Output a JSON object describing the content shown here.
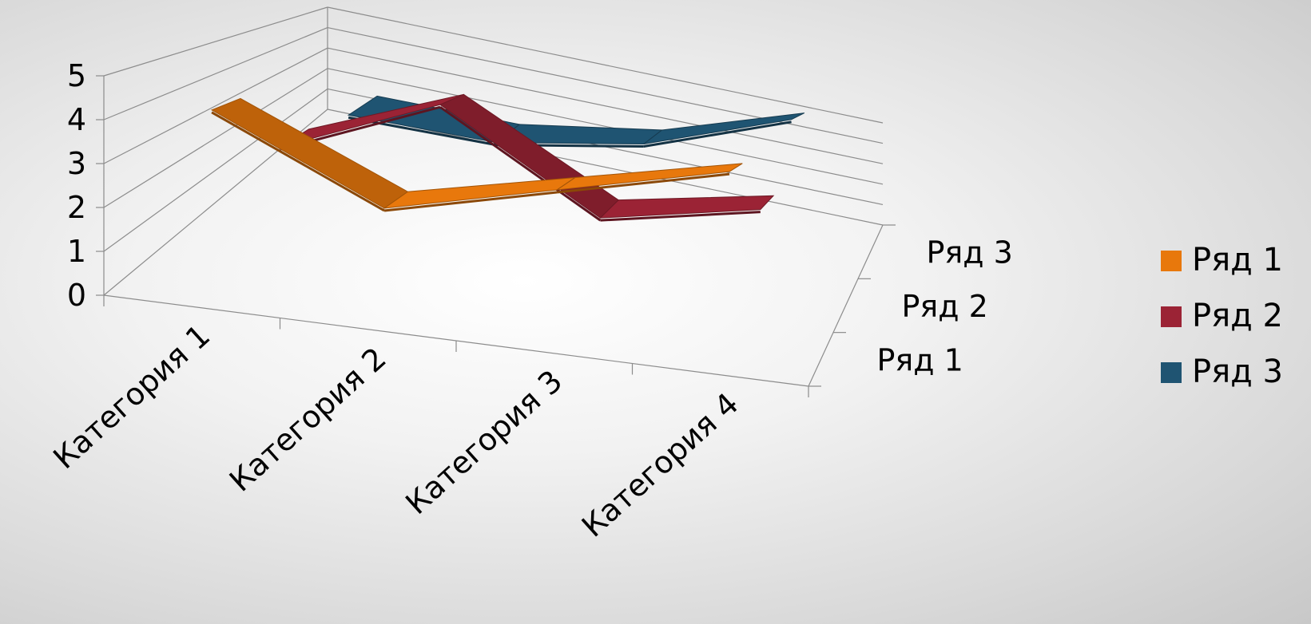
{
  "chart_data": {
    "type": "line",
    "subtype": "3d-line",
    "title": "",
    "categories": [
      "Категория 1",
      "Категория 2",
      "Категория 3",
      "Категория 4"
    ],
    "series": [
      {
        "name": "Ряд 1",
        "values": [
          4.3,
          2.5,
          3.5,
          4.5
        ],
        "color": "#e8780c"
      },
      {
        "name": "Ряд 2",
        "values": [
          2.4,
          4.4,
          1.8,
          2.8
        ],
        "color": "#9b2335"
      },
      {
        "name": "Ряд 3",
        "values": [
          2.0,
          2.0,
          3.0,
          5.0
        ],
        "color": "#1f5472"
      }
    ],
    "ylim": [
      0,
      5
    ],
    "yticks": [
      "0",
      "1",
      "2",
      "3",
      "4",
      "5"
    ],
    "depth_labels": [
      "Ряд 1",
      "Ряд 2",
      "Ряд 3"
    ],
    "grid": true,
    "legend": {
      "position": "right",
      "entries": [
        "Ряд 1",
        "Ряд 2",
        "Ряд 3"
      ]
    }
  }
}
